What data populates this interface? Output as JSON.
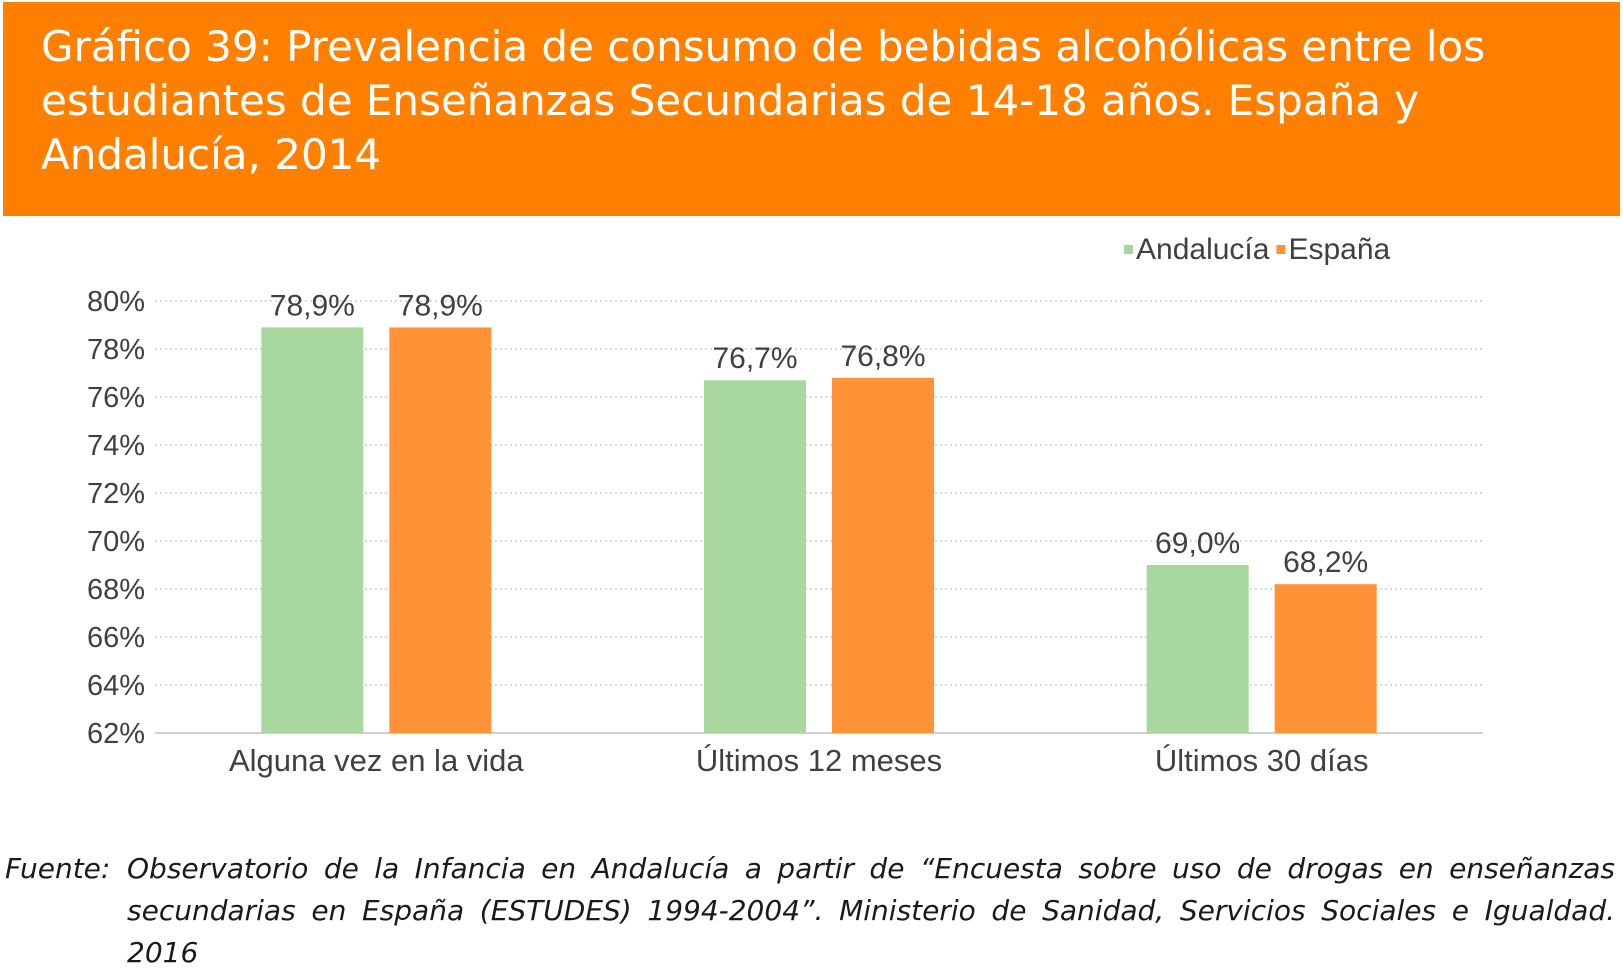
{
  "header": {
    "title": "Gráfico 39: Prevalencia de consumo de bebidas alcohólicas entre los estudiantes de Enseñanzas Secundarias de 14-18 años. España y Andalucía, 2014"
  },
  "colors": {
    "header_bg": "#FF7F00",
    "andalucia": "#A9D89E",
    "espana": "#FF9236",
    "gridline": "#BFBFBF"
  },
  "chart_data": {
    "type": "bar",
    "title": "",
    "xlabel": "",
    "ylabel": "",
    "categories": [
      "Alguna vez en la vida",
      "Últimos 12 meses",
      "Últimos 30 días"
    ],
    "series": [
      {
        "name": "Andalucía",
        "values": [
          78.9,
          76.7,
          69.0
        ],
        "labels": [
          "78,9%",
          "76,7%",
          "69,0%"
        ]
      },
      {
        "name": "España",
        "values": [
          78.9,
          76.8,
          68.2
        ],
        "labels": [
          "78,9%",
          "76,8%",
          "68,2%"
        ]
      }
    ],
    "ylim": [
      62,
      80
    ],
    "yticks": [
      80,
      78,
      76,
      74,
      72,
      70,
      68,
      66,
      64,
      62
    ],
    "ytick_labels": [
      "80%",
      "78%",
      "76%",
      "74%",
      "72%",
      "70%",
      "68%",
      "66%",
      "64%",
      "62%"
    ],
    "grid": true,
    "legend_position": "top-right"
  },
  "source": {
    "lead": "Fuente:",
    "text": "Observatorio de la Infancia en Andalucía a partir de “Encuesta sobre uso de drogas en enseñanzas secundarias en España (ESTUDES) 1994-2004”. Ministerio de Sanidad, Servicios Sociales e Igualdad. 2016"
  }
}
